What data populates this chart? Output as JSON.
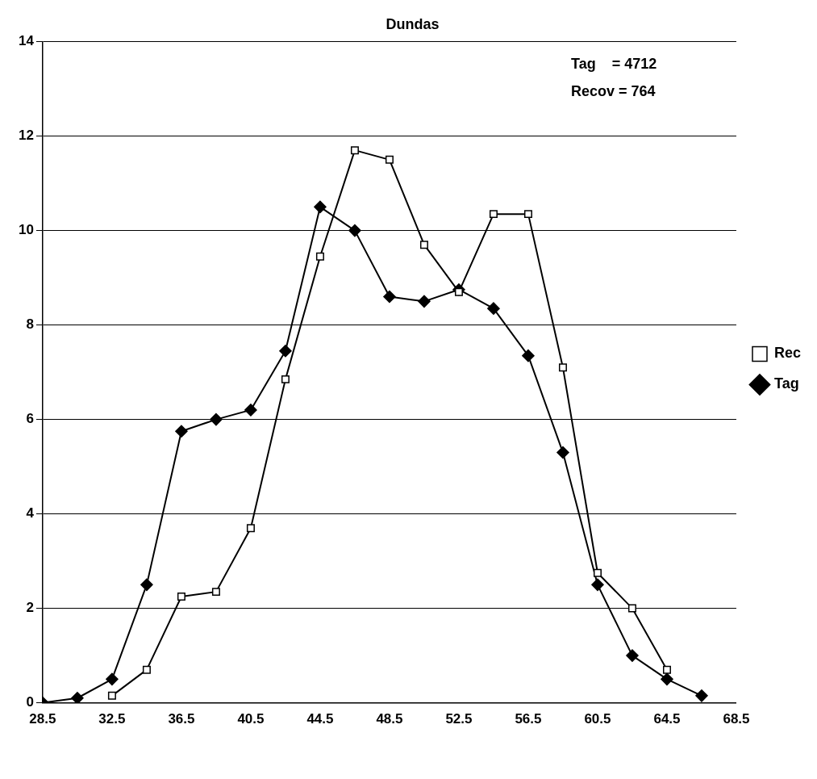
{
  "chart_data": {
    "type": "line",
    "title": "Dundas",
    "x": [
      28.5,
      30.5,
      32.5,
      34.5,
      36.5,
      38.5,
      40.5,
      42.5,
      44.5,
      46.5,
      48.5,
      50.5,
      52.5,
      54.5,
      56.5,
      58.5,
      60.5,
      62.5,
      64.5,
      66.5
    ],
    "series": [
      {
        "name": "Tag",
        "color": "#000000",
        "marker": "diamond",
        "values": [
          0,
          0.1,
          0.5,
          2.5,
          5.75,
          6.0,
          6.2,
          7.45,
          10.5,
          10.0,
          8.6,
          8.5,
          8.75,
          8.35,
          7.35,
          5.3,
          2.5,
          1.0,
          0.5,
          0.15
        ]
      },
      {
        "name": "Rec",
        "color": "#000000",
        "marker": "square",
        "values": [
          null,
          null,
          0.15,
          0.7,
          2.25,
          2.35,
          3.7,
          6.85,
          9.45,
          11.7,
          11.5,
          9.7,
          8.7,
          10.35,
          10.35,
          7.1,
          2.75,
          2.0,
          0.7,
          null
        ]
      }
    ],
    "xlim": [
      28.5,
      68.5
    ],
    "xticks": [
      28.5,
      32.5,
      36.5,
      40.5,
      44.5,
      48.5,
      52.5,
      56.5,
      60.5,
      64.5,
      68.5
    ],
    "ylim": [
      0,
      14
    ],
    "yticks": [
      0,
      2,
      4,
      6,
      8,
      10,
      12,
      14
    ],
    "grid": "y",
    "legend": "right",
    "line_style": "solid",
    "annotations": [
      "Tag    = 4712",
      "Recov = 764"
    ]
  }
}
